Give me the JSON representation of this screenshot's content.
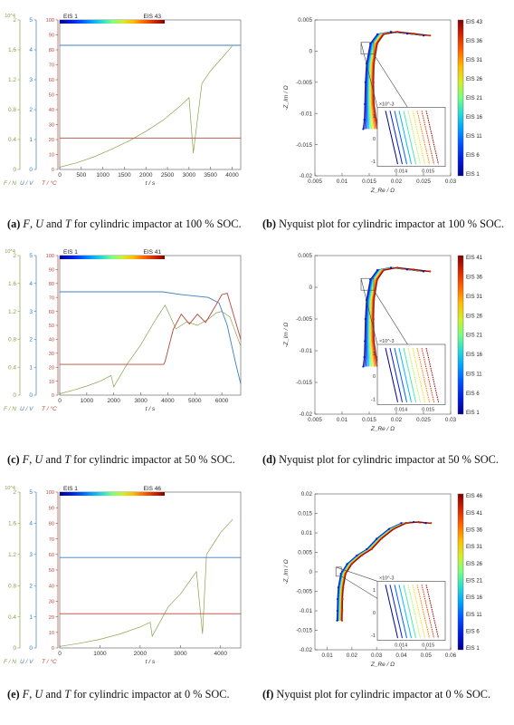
{
  "figure": {
    "captions": [
      {
        "id": "a",
        "label": "(a)",
        "parts": [
          [
            "F",
            1
          ],
          [
            ", ",
            0
          ],
          [
            "U",
            1
          ],
          [
            " and ",
            0
          ],
          [
            "T",
            1
          ],
          [
            " for cylindric impactor at 100 % SOC.",
            0
          ]
        ]
      },
      {
        "id": "b",
        "label": "(b)",
        "parts": [
          [
            "Nyquist plot for cylindric impactor at 100 % SOC.",
            0
          ]
        ]
      },
      {
        "id": "c",
        "label": "(c)",
        "parts": [
          [
            "F",
            1
          ],
          [
            ", ",
            0
          ],
          [
            "U",
            1
          ],
          [
            " and ",
            0
          ],
          [
            "T",
            1
          ],
          [
            " for cylindric impactor at 50 % SOC.",
            0
          ]
        ]
      },
      {
        "id": "d",
        "label": "(d)",
        "parts": [
          [
            "Nyquist plot for cylindric impactor at 50 % SOC.",
            0
          ]
        ]
      },
      {
        "id": "e",
        "label": "(e)",
        "parts": [
          [
            "F",
            1
          ],
          [
            ", ",
            0
          ],
          [
            "U",
            1
          ],
          [
            " and ",
            0
          ],
          [
            "T",
            1
          ],
          [
            " for cylindric impactor at 0 % SOC.",
            0
          ]
        ]
      },
      {
        "id": "f",
        "label": "(f)",
        "parts": [
          [
            "Nyquist plot for cylindric impactor at 0 % SOC.",
            0
          ]
        ]
      }
    ]
  },
  "colors": {
    "force": "#8aa24e",
    "voltage": "#3d7fc0",
    "temperature": "#b5473a",
    "axis": "#555555"
  },
  "chart_data": [
    {
      "id": "a",
      "type": "line",
      "caption": "F, U and T for cylindric impactor at 100 % SOC.",
      "xlabel": "t / s",
      "xlim": [
        0,
        4200
      ],
      "xticks": [
        0,
        500,
        1000,
        1500,
        2000,
        2500,
        3000,
        3500,
        4000
      ],
      "y_axes": [
        {
          "label": "F / N",
          "ylim": [
            0,
            20000
          ],
          "ticks": [
            "0",
            "0.4",
            "0.8",
            "1.2",
            "1.6",
            "2"
          ],
          "exponent": "10^4",
          "color": "#8aa24e"
        },
        {
          "label": "U / V",
          "ylim": [
            0,
            5
          ],
          "ticks": [
            "0",
            "1",
            "2",
            "3",
            "4",
            "5"
          ],
          "color": "#3d7fc0"
        },
        {
          "label": "T / °C",
          "ylim": [
            0,
            100
          ],
          "ticks": [
            "0",
            "10",
            "20",
            "30",
            "40",
            "50",
            "60",
            "70",
            "80",
            "90",
            "100"
          ],
          "color": "#b5473a"
        }
      ],
      "colorbar": {
        "start_label": "EIS 1",
        "end_label": "EIS 43"
      },
      "series": [
        {
          "name": "F / N",
          "axis": 0,
          "x": [
            0,
            400,
            800,
            1200,
            1600,
            2000,
            2400,
            2800,
            3000,
            3100,
            3300,
            3500,
            3700,
            4000
          ],
          "values": [
            300,
            900,
            1700,
            2700,
            3800,
            5100,
            6600,
            8500,
            9600,
            2200,
            11500,
            13200,
            14500,
            16500
          ]
        },
        {
          "name": "U / V",
          "axis": 1,
          "x": [
            0,
            4200
          ],
          "values": [
            4.15,
            4.15
          ]
        },
        {
          "name": "T / °C",
          "axis": 2,
          "x": [
            0,
            4200
          ],
          "values": [
            21,
            21
          ]
        }
      ]
    },
    {
      "id": "b",
      "type": "line",
      "caption": "Nyquist plot for cylindric impactor at 100 % SOC.",
      "xlabel": "Z_Re / Ω",
      "ylabel": "-Z_Im / Ω",
      "xlim": [
        0.005,
        0.03
      ],
      "ylim": [
        -0.02,
        0.005
      ],
      "xticks": [
        "0.005",
        "0.01",
        "0.015",
        "0.02",
        "0.025",
        "0.03"
      ],
      "yticks": [
        "-0.02",
        "-0.015",
        "-0.01",
        "-0.005",
        "0",
        "0.005"
      ],
      "colorbar_ticks": [
        "EIS 43",
        "EIS 36",
        "EIS 31",
        "EIS 26",
        "EIS 21",
        "EIS 16",
        "EIS 11",
        "EIS 6",
        "EIS 1"
      ],
      "inset": {
        "xticks": [
          "0.014",
          "0.015"
        ],
        "yticks": [
          "1",
          "0",
          "-1"
        ],
        "exponent": "×10^-3"
      },
      "series": [
        {
          "name": "EIS 1",
          "x": [
            0.025,
            0.022,
            0.019,
            0.0165,
            0.0152,
            0.0145,
            0.0143,
            0.0142,
            0.0141,
            0.0139
          ],
          "values": [
            0.0025,
            0.0028,
            0.0031,
            0.0027,
            0.0012,
            -0.002,
            -0.005,
            -0.0085,
            -0.011,
            -0.0125
          ]
        },
        {
          "name": "EIS 43",
          "x": [
            0.0262,
            0.0232,
            0.0202,
            0.0177,
            0.0165,
            0.0159,
            0.0158,
            0.0159,
            0.0163,
            0.0167
          ],
          "values": [
            0.0025,
            0.0028,
            0.0031,
            0.0027,
            0.0012,
            -0.002,
            -0.005,
            -0.0085,
            -0.011,
            -0.0125
          ]
        }
      ]
    },
    {
      "id": "c",
      "type": "line",
      "caption": "F, U and T for cylindric impactor at 50 % SOC.",
      "xlabel": "t / s",
      "xlim": [
        0,
        6700
      ],
      "xticks": [
        0,
        1000,
        2000,
        3000,
        4000,
        5000,
        6000
      ],
      "y_axes": [
        {
          "label": "F / N",
          "ylim": [
            0,
            20000
          ],
          "ticks": [
            "0",
            "0.4",
            "0.8",
            "1.2",
            "1.6",
            "2"
          ],
          "exponent": "10^4",
          "color": "#8aa24e"
        },
        {
          "label": "U / V",
          "ylim": [
            0,
            5
          ],
          "ticks": [
            "0",
            "1",
            "2",
            "3",
            "4",
            "5"
          ],
          "color": "#3d7fc0"
        },
        {
          "label": "T / °C",
          "ylim": [
            0,
            100
          ],
          "ticks": [
            "0",
            "10",
            "20",
            "30",
            "40",
            "50",
            "60",
            "70",
            "80",
            "90",
            "100"
          ],
          "color": "#b5473a"
        }
      ],
      "colorbar": {
        "start_label": "EIS 1",
        "end_label": "EIS 41"
      },
      "series": [
        {
          "name": "F / N",
          "axis": 0,
          "x": [
            0,
            500,
            1000,
            1500,
            1900,
            2000,
            2500,
            3000,
            3500,
            3900,
            4300,
            4700,
            5100,
            5500,
            5800,
            6000,
            6300,
            6700
          ],
          "values": [
            200,
            700,
            1300,
            2000,
            2800,
            1200,
            4500,
            7200,
            10500,
            12900,
            9500,
            10500,
            10000,
            10900,
            11800,
            12000,
            11200,
            7000
          ]
        },
        {
          "name": "U / V",
          "axis": 1,
          "x": [
            0,
            3800,
            4500,
            5500,
            5900,
            6200,
            6500,
            6700
          ],
          "values": [
            3.7,
            3.7,
            3.6,
            3.5,
            3.3,
            2.5,
            1.2,
            0.4
          ]
        },
        {
          "name": "T / °C",
          "axis": 2,
          "x": [
            0,
            3850,
            3900,
            4200,
            4500,
            4800,
            5100,
            5400,
            5800,
            6000,
            6200,
            6400,
            6700
          ],
          "values": [
            22,
            22,
            24,
            47,
            58,
            51,
            58,
            52,
            65,
            72,
            73,
            60,
            40
          ]
        }
      ]
    },
    {
      "id": "d",
      "type": "line",
      "caption": "Nyquist plot for cylindric impactor at 50 % SOC.",
      "xlabel": "Z_Re / Ω",
      "ylabel": "-Z_Im / Ω",
      "xlim": [
        0.005,
        0.03
      ],
      "ylim": [
        -0.02,
        0.005
      ],
      "xticks": [
        "0.005",
        "0.01",
        "0.015",
        "0.02",
        "0.025",
        "0.03"
      ],
      "yticks": [
        "-0.02",
        "-0.015",
        "-0.01",
        "-0.005",
        "0",
        "0.005"
      ],
      "colorbar_ticks": [
        "EIS 41",
        "EIS 36",
        "EIS 31",
        "EIS 26",
        "EIS 21",
        "EIS 16",
        "EIS 11",
        "EIS 6",
        "EIS 1"
      ],
      "inset": {
        "xticks": [
          "0.014",
          "0.015"
        ],
        "yticks": [
          "1",
          "0",
          "-1"
        ],
        "exponent": "×10^-3"
      },
      "series": [
        {
          "name": "EIS 1",
          "x": [
            0.025,
            0.022,
            0.019,
            0.0165,
            0.0152,
            0.0145,
            0.0143,
            0.0142,
            0.0141,
            0.0139
          ],
          "values": [
            0.0025,
            0.0028,
            0.0031,
            0.0027,
            0.0012,
            -0.002,
            -0.005,
            -0.0085,
            -0.011,
            -0.0125
          ]
        },
        {
          "name": "EIS 41",
          "x": [
            0.0262,
            0.0232,
            0.0202,
            0.0177,
            0.0165,
            0.0159,
            0.0158,
            0.0159,
            0.0163,
            0.0167
          ],
          "values": [
            0.0025,
            0.0028,
            0.0031,
            0.0027,
            0.0012,
            -0.002,
            -0.005,
            -0.0085,
            -0.011,
            -0.0125
          ]
        }
      ]
    },
    {
      "id": "e",
      "type": "line",
      "caption": "F, U and T for cylindric impactor at 0 % SOC.",
      "xlabel": "t / s",
      "xlim": [
        0,
        4500
      ],
      "xticks": [
        0,
        1000,
        2000,
        3000,
        4000
      ],
      "y_axes": [
        {
          "label": "F / N",
          "ylim": [
            0,
            20000
          ],
          "ticks": [
            "0",
            "0.4",
            "0.8",
            "1.2",
            "1.6",
            "2"
          ],
          "exponent": "10^4",
          "color": "#8aa24e"
        },
        {
          "label": "U / V",
          "ylim": [
            0,
            5
          ],
          "ticks": [
            "0",
            "1",
            "2",
            "3",
            "4",
            "5"
          ],
          "color": "#3d7fc0"
        },
        {
          "label": "T / °C",
          "ylim": [
            0,
            100
          ],
          "ticks": [
            "0",
            "10",
            "20",
            "30",
            "40",
            "50",
            "60",
            "70",
            "80",
            "90",
            "100"
          ],
          "color": "#b5473a"
        }
      ],
      "colorbar": {
        "start_label": "EIS 1",
        "end_label": "EIS 46"
      },
      "series": [
        {
          "name": "F / N",
          "axis": 0,
          "x": [
            0,
            500,
            1000,
            1500,
            2000,
            2250,
            2300,
            2700,
            3000,
            3400,
            3550,
            3650,
            3800,
            4000,
            4300
          ],
          "values": [
            200,
            600,
            1100,
            1800,
            2700,
            3300,
            1500,
            5300,
            6900,
            9800,
            1800,
            12000,
            13200,
            14800,
            16500
          ]
        },
        {
          "name": "U / V",
          "axis": 1,
          "x": [
            0,
            4500
          ],
          "values": [
            2.9,
            2.9
          ]
        },
        {
          "name": "T / °C",
          "axis": 2,
          "x": [
            0,
            4500
          ],
          "values": [
            22,
            22
          ]
        }
      ]
    },
    {
      "id": "f",
      "type": "line",
      "caption": "Nyquist plot for cylindric impactor at 0 % SOC.",
      "xlabel": "Z_Re / Ω",
      "ylabel": "-Z_Im / Ω",
      "xlim": [
        0.005,
        0.06
      ],
      "ylim": [
        -0.02,
        0.02
      ],
      "xticks": [
        "0.01",
        "0.02",
        "0.03",
        "0.04",
        "0.05",
        "0.06"
      ],
      "yticks": [
        "-0.02",
        "-0.015",
        "-0.01",
        "-0.005",
        "0",
        "0.005",
        "0.01",
        "0.015",
        "0.02"
      ],
      "colorbar_ticks": [
        "EIS 46",
        "EIS 41",
        "EIS 36",
        "EIS 31",
        "EIS 26",
        "EIS 21",
        "EIS 16",
        "EIS 11",
        "EIS 6",
        "EIS 1"
      ],
      "inset": {
        "xticks": [
          "0.014",
          "0.015"
        ],
        "yticks": [
          "1",
          "0",
          "-1"
        ],
        "exponent": "×10^-3"
      },
      "series": [
        {
          "name": "EIS 1",
          "x": [
            0.05,
            0.045,
            0.04,
            0.035,
            0.03,
            0.026,
            0.022,
            0.018,
            0.0155,
            0.0145,
            0.0142,
            0.0141,
            0.014
          ],
          "values": [
            0.0125,
            0.0128,
            0.0125,
            0.011,
            0.0085,
            0.0058,
            0.0042,
            0.002,
            -0.0005,
            -0.004,
            -0.007,
            -0.01,
            -0.0125
          ]
        },
        {
          "name": "EIS 46",
          "x": [
            0.052,
            0.047,
            0.042,
            0.037,
            0.032,
            0.028,
            0.024,
            0.02,
            0.0175,
            0.0165,
            0.0162,
            0.0161,
            0.016
          ],
          "values": [
            0.0125,
            0.0128,
            0.0125,
            0.011,
            0.0085,
            0.0058,
            0.0042,
            0.002,
            -0.0005,
            -0.004,
            -0.007,
            -0.01,
            -0.0125
          ]
        }
      ]
    }
  ]
}
